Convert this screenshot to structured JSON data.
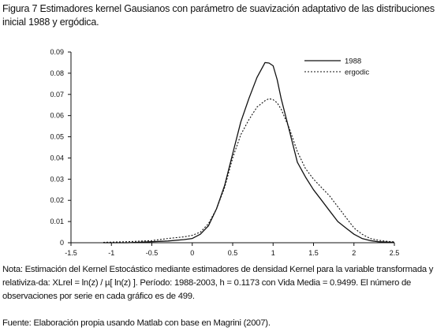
{
  "caption": "Figura 7 Estimadores kernel Gausianos con parámetro de suavización adaptativo de las distribuciones inicial 1988 y ergódica.",
  "note": "Nota: Estimación del Kernel Estocástico mediante estimadores de densidad Kernel para la variable transformada y relativiza-da: XLrel = ln(z) / µ[ ln(z) ].  Período: 1988-2003, h = 0.1173 con Vida Media = 0.9499.  El número de observaciones por serie en cada gráfico es de 499.",
  "source": "Fuente:  Elaboración propia usando Matlab con base en Magrini (2007).",
  "chart_data": {
    "type": "line",
    "xlim": [
      -1.5,
      2.5
    ],
    "ylim": [
      0,
      0.09
    ],
    "xticks": [
      "-1.5",
      "-1",
      "-0.5",
      "0",
      "0.5",
      "1",
      "1.5",
      "2",
      "2.5"
    ],
    "yticks": [
      "0",
      "0.01",
      "0.02",
      "0.03",
      "0.04",
      "0.05",
      "0.06",
      "0.07",
      "0.08",
      "0.09"
    ],
    "grid": false,
    "legend_position": "top-right",
    "series": [
      {
        "name": "1988",
        "style": "solid",
        "x": [
          -1.1,
          -0.8,
          -0.5,
          -0.3,
          -0.1,
          0.0,
          0.1,
          0.2,
          0.3,
          0.4,
          0.5,
          0.6,
          0.7,
          0.8,
          0.9,
          0.95,
          1.0,
          1.05,
          1.1,
          1.2,
          1.3,
          1.4,
          1.5,
          1.6,
          1.7,
          1.8,
          1.9,
          2.0,
          2.1,
          2.2,
          2.3,
          2.4,
          2.5
        ],
        "y": [
          0.0,
          0.0,
          0.0005,
          0.0008,
          0.0015,
          0.002,
          0.004,
          0.008,
          0.016,
          0.027,
          0.042,
          0.057,
          0.068,
          0.078,
          0.085,
          0.0848,
          0.0835,
          0.077,
          0.068,
          0.053,
          0.038,
          0.031,
          0.025,
          0.02,
          0.015,
          0.01,
          0.007,
          0.004,
          0.002,
          0.001,
          0.0005,
          0.0003,
          0.0002
        ]
      },
      {
        "name": "ergodic",
        "style": "dotted",
        "x": [
          -1.1,
          -0.8,
          -0.5,
          -0.3,
          -0.1,
          0.0,
          0.1,
          0.2,
          0.3,
          0.4,
          0.5,
          0.6,
          0.7,
          0.8,
          0.9,
          0.95,
          1.0,
          1.05,
          1.1,
          1.2,
          1.3,
          1.4,
          1.5,
          1.6,
          1.7,
          1.8,
          1.9,
          2.0,
          2.1,
          2.2,
          2.3,
          2.4,
          2.5
        ],
        "y": [
          0.0002,
          0.0005,
          0.001,
          0.002,
          0.0028,
          0.0035,
          0.005,
          0.009,
          0.016,
          0.026,
          0.04,
          0.051,
          0.058,
          0.064,
          0.067,
          0.068,
          0.0675,
          0.066,
          0.063,
          0.054,
          0.043,
          0.035,
          0.03,
          0.026,
          0.022,
          0.017,
          0.012,
          0.007,
          0.004,
          0.002,
          0.0012,
          0.0007,
          0.0004
        ]
      }
    ]
  }
}
